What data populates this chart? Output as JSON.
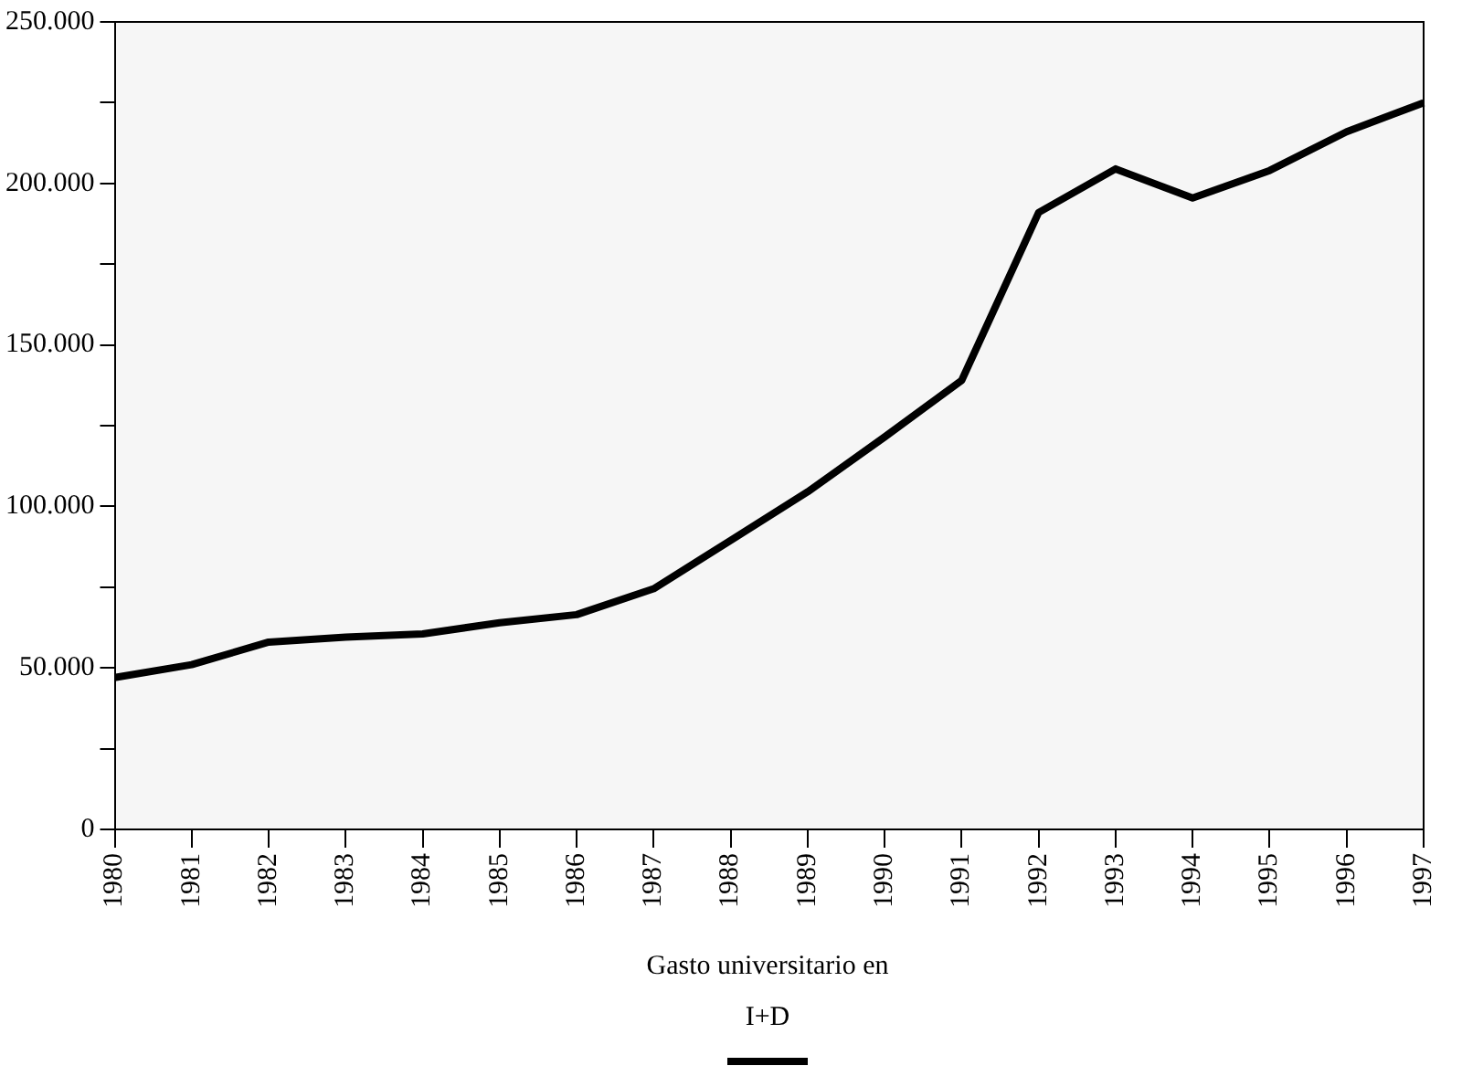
{
  "chart_data": {
    "type": "line",
    "categories": [
      "1980",
      "1981",
      "1982",
      "1983",
      "1984",
      "1985",
      "1986",
      "1987",
      "1988",
      "1989",
      "1990",
      "1991",
      "1992",
      "1993",
      "1994",
      "1995",
      "1996",
      "1997"
    ],
    "series": [
      {
        "name": "Gasto universitario en I+D",
        "color": "#000000",
        "values": [
          47000,
          51000,
          58000,
          59500,
          60500,
          64000,
          66500,
          74500,
          89500,
          104500,
          121500,
          139000,
          191000,
          204500,
          195500,
          204000,
          216000,
          225000
        ]
      }
    ],
    "ylim": [
      0,
      250000
    ],
    "yticks": [
      {
        "value": 0,
        "label": "0"
      },
      {
        "value": 25000,
        "label": null
      },
      {
        "value": 50000,
        "label": "50.000"
      },
      {
        "value": 75000,
        "label": null
      },
      {
        "value": 100000,
        "label": "100.000"
      },
      {
        "value": 125000,
        "label": null
      },
      {
        "value": 150000,
        "label": "150.000"
      },
      {
        "value": 175000,
        "label": null
      },
      {
        "value": 200000,
        "label": "200.000"
      },
      {
        "value": 225000,
        "label": null
      },
      {
        "value": 250000,
        "label": "250.000"
      }
    ],
    "grid": false,
    "legend": "bottom",
    "marker": "none",
    "line_style": "solid"
  }
}
